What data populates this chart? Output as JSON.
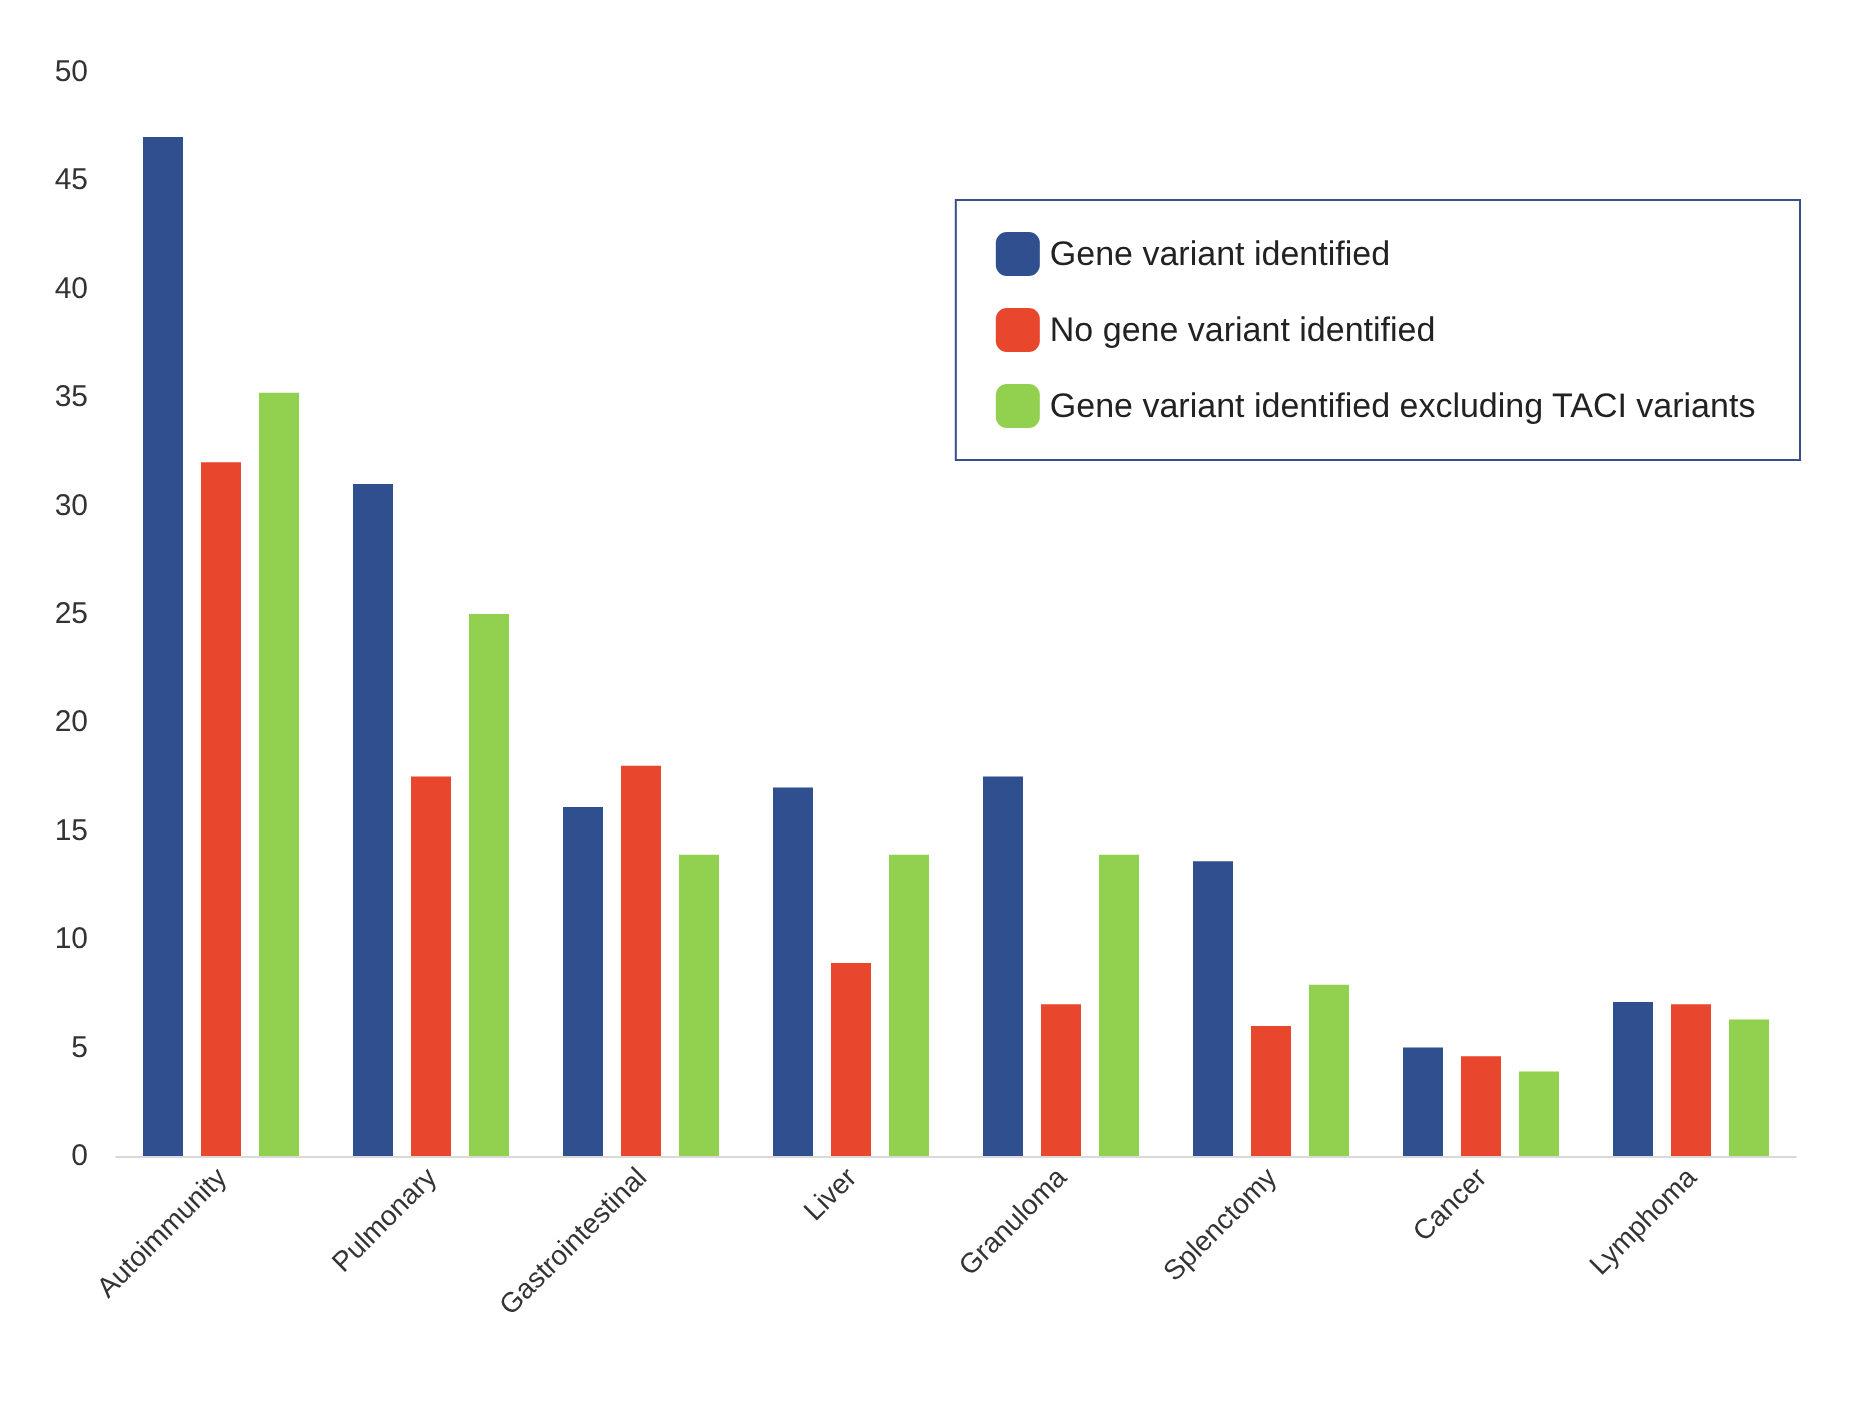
{
  "chart_data": {
    "type": "bar",
    "categories": [
      "Autoimmunity",
      "Pulmonary",
      "Gastrointestinal",
      "Liver",
      "Granuloma",
      "Splenctomy",
      "Cancer",
      "Lymphoma"
    ],
    "series": [
      {
        "name": "Gene variant identified",
        "color": "#2f4f8f",
        "values": [
          47,
          31,
          16.1,
          17,
          17.5,
          13.6,
          5,
          7.1
        ]
      },
      {
        "name": "No gene variant identified",
        "color": "#e8472e",
        "values": [
          32,
          17.5,
          18,
          8.9,
          7,
          6,
          4.6,
          7
        ]
      },
      {
        "name": "Gene variant identified excluding TACI variants",
        "color": "#92d050",
        "values": [
          35.2,
          25,
          13.9,
          13.9,
          13.9,
          7.9,
          3.9,
          6.3
        ]
      }
    ],
    "ylim": [
      0,
      50
    ],
    "yticks": [
      0,
      5,
      10,
      15,
      20,
      25,
      30,
      35,
      40,
      45,
      50
    ],
    "grid": false,
    "legend": "top right"
  }
}
